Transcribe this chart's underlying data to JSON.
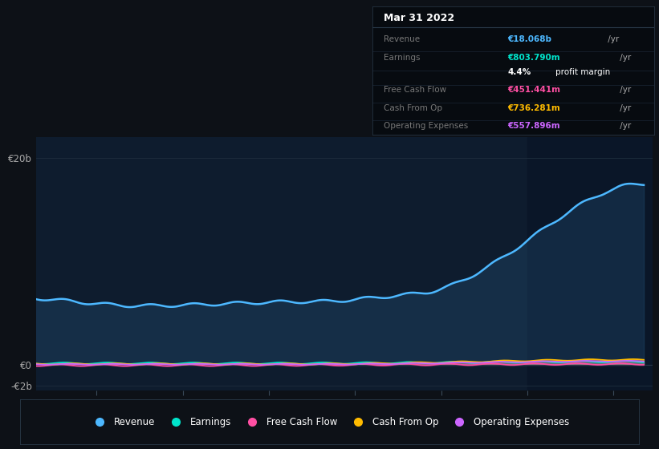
{
  "bg_color": "#0d1117",
  "plot_bg_color": "#0e1c2e",
  "highlight_bg_color": "#0a1628",
  "grid_color": "#1e2d3d",
  "y_label_20b": "€20b",
  "y_label_0": "€0",
  "y_label_neg2b": "-€2b",
  "series_colors": {
    "Revenue": "#4db8ff",
    "Earnings": "#00e5cc",
    "Free Cash Flow": "#ff4fa3",
    "Cash From Op": "#ffbb00",
    "Operating Expenses": "#cc66ff"
  },
  "info_box": {
    "date": "Mar 31 2022",
    "rows": [
      {
        "label": "Revenue",
        "val": "€18.068b",
        "val_color": "#4db8ff",
        "suffix": " /yr",
        "sub": null
      },
      {
        "label": "Earnings",
        "val": "€803.790m",
        "val_color": "#00e5cc",
        "suffix": " /yr",
        "sub": "4.4% profit margin"
      },
      {
        "label": "Free Cash Flow",
        "val": "€451.441m",
        "val_color": "#ff4fa3",
        "suffix": " /yr",
        "sub": null
      },
      {
        "label": "Cash From Op",
        "val": "€736.281m",
        "val_color": "#ffbb00",
        "suffix": " /yr",
        "sub": null
      },
      {
        "label": "Operating Expenses",
        "val": "€557.896m",
        "val_color": "#cc66ff",
        "suffix": " /yr",
        "sub": null
      }
    ]
  },
  "legend_items": [
    "Revenue",
    "Earnings",
    "Free Cash Flow",
    "Cash From Op",
    "Operating Expenses"
  ],
  "xmin": 2015.3,
  "xmax": 2022.45,
  "ymin": -2500000000.0,
  "ymax": 22000000000.0,
  "highlight_x_start": 2021.0
}
